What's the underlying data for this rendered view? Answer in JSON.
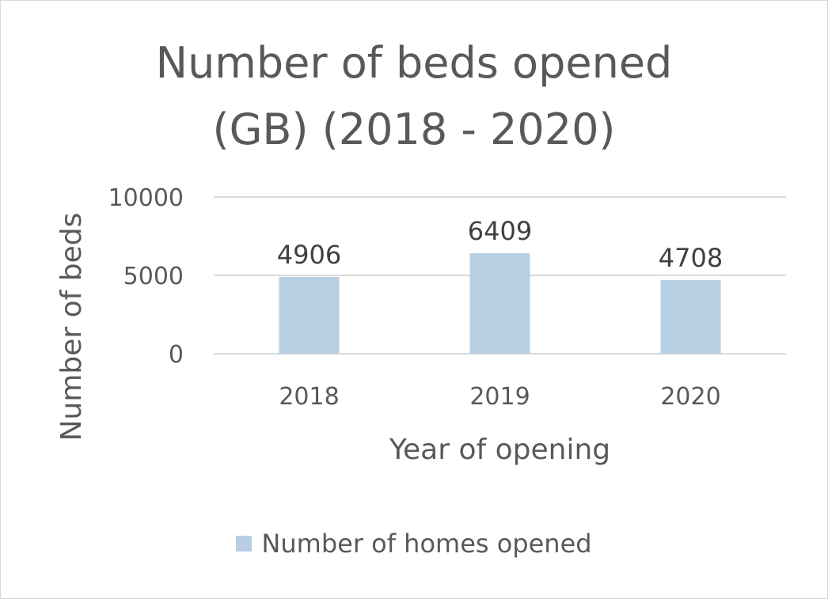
{
  "chart_data": {
    "type": "bar",
    "title_lines": [
      "Number of beds opened",
      "(GB) (2018 - 2020)"
    ],
    "categories": [
      "2018",
      "2019",
      "2020"
    ],
    "series": [
      {
        "name": "Number of homes opened",
        "values": [
          4906,
          6409,
          4708
        ],
        "color": "#b8cfe3"
      }
    ],
    "data_labels": [
      "4906",
      "6409",
      "4708"
    ],
    "xlabel": "Year of opening",
    "ylabel": "Number of beds",
    "ylim": [
      0,
      10000
    ],
    "y_ticks": [
      "0",
      "5000",
      "10000"
    ],
    "grid": true,
    "legend_position": "bottom",
    "gridline_color": "#d9d9d9"
  }
}
